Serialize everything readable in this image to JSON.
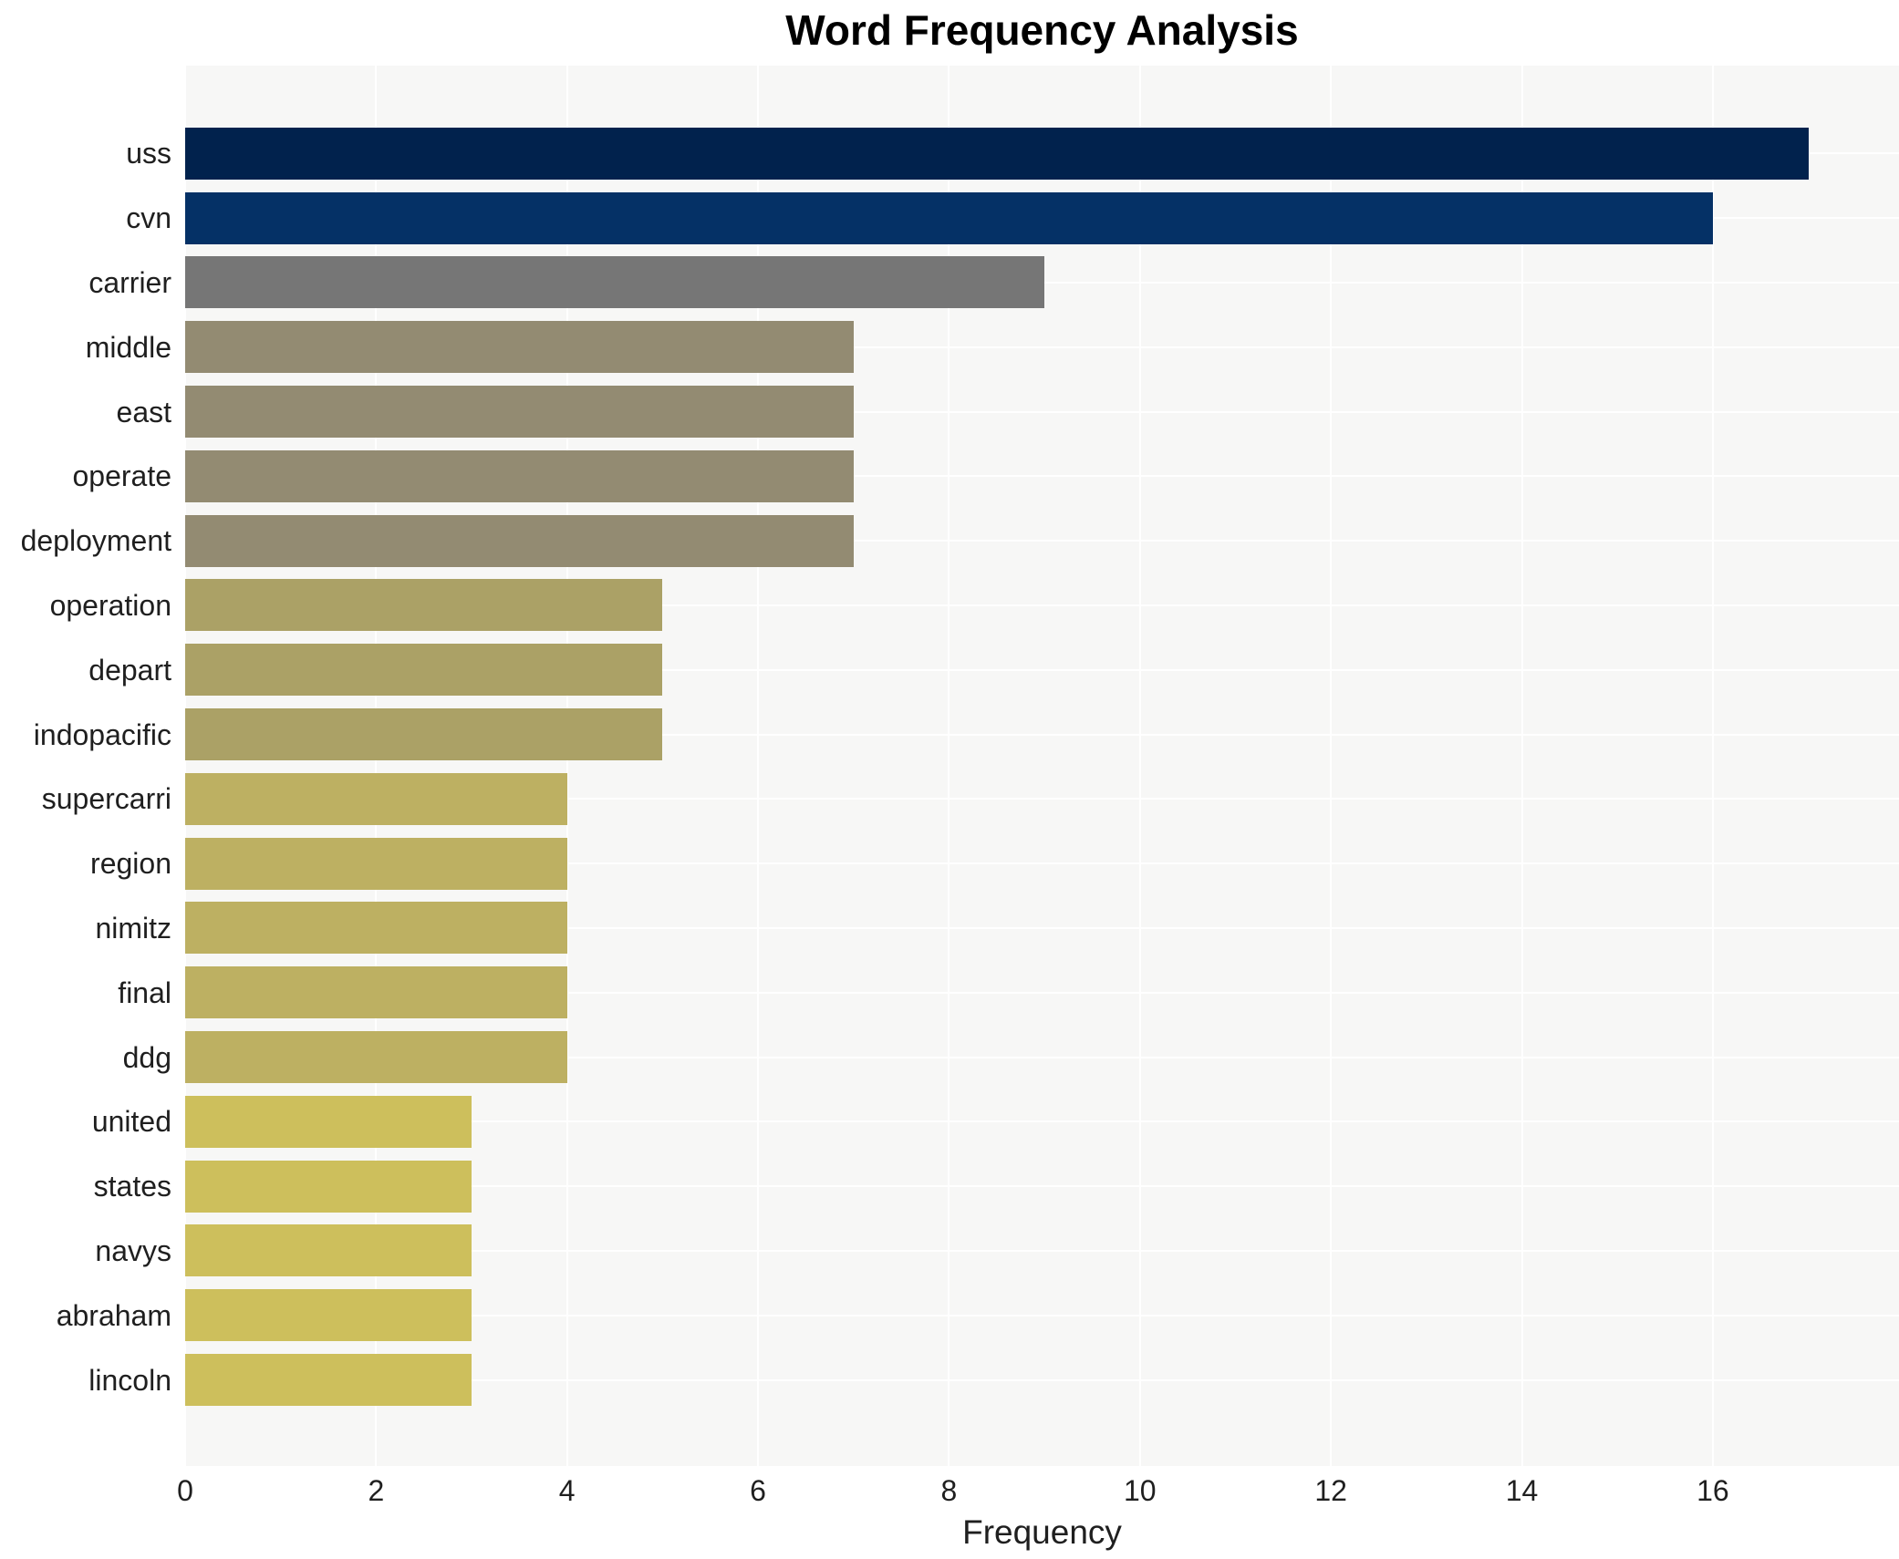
{
  "title": "Word Frequency Analysis",
  "chart_data": {
    "type": "bar",
    "orientation": "horizontal",
    "title": "Word Frequency Analysis",
    "xlabel": "Frequency",
    "ylabel": "",
    "categories": [
      "uss",
      "cvn",
      "carrier",
      "middle",
      "east",
      "operate",
      "deployment",
      "operation",
      "depart",
      "indopacific",
      "supercarri",
      "region",
      "nimitz",
      "final",
      "ddg",
      "united",
      "states",
      "navys",
      "abraham",
      "lincoln"
    ],
    "values": [
      17,
      16,
      9,
      7,
      7,
      7,
      7,
      5,
      5,
      5,
      4,
      4,
      4,
      4,
      4,
      3,
      3,
      3,
      3,
      3
    ],
    "bar_colors": [
      "#01224d",
      "#053166",
      "#767676",
      "#938b72",
      "#938b72",
      "#938b72",
      "#938b72",
      "#aba166",
      "#aba166",
      "#aba166",
      "#bdb062",
      "#bdb062",
      "#bdb062",
      "#bdb062",
      "#bdb062",
      "#cdbf5c",
      "#cdbf5c",
      "#cdbf5c",
      "#cdbf5c",
      "#cdbf5c"
    ],
    "xlim": [
      0,
      17.95
    ],
    "xticks": [
      0,
      2,
      4,
      6,
      8,
      10,
      12,
      14,
      16
    ],
    "grid": true,
    "legend_position": "none",
    "plot_background": "#f7f7f6",
    "grid_color": "#ffffff",
    "text_color": "#1f1f1f",
    "title_color": "#000000"
  }
}
